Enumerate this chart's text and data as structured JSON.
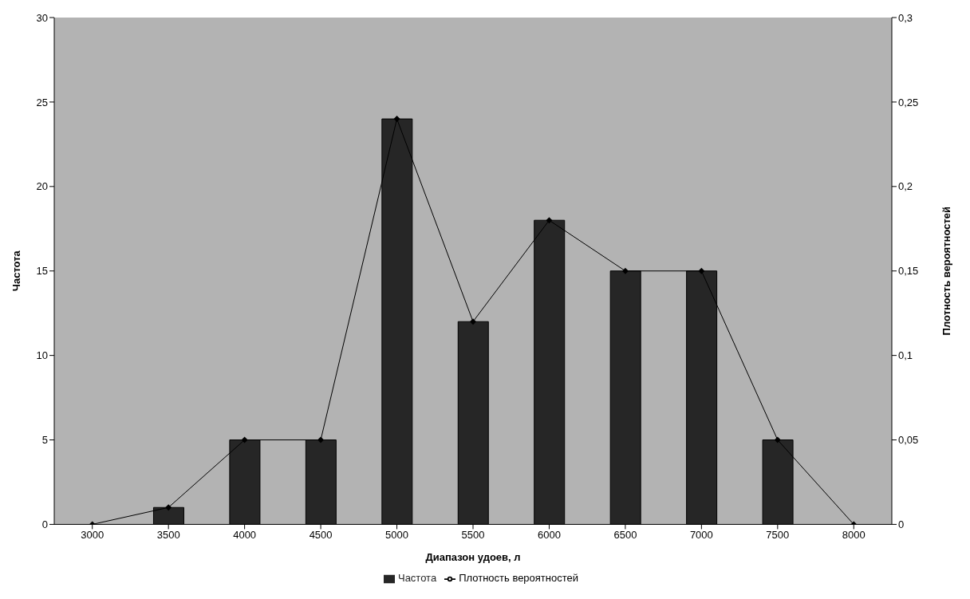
{
  "chart_data": {
    "type": "bar",
    "xlabel": "Диапазон удоев, л",
    "ylabel": "Частота",
    "y2label": "Плотность вероятностей",
    "categories": [
      "3000",
      "3500",
      "4000",
      "4500",
      "5000",
      "5500",
      "6000",
      "6500",
      "7000",
      "7500",
      "8000"
    ],
    "series": [
      {
        "name": "Частота",
        "color": "#262626",
        "values": [
          0,
          1,
          5,
          5,
          24,
          12,
          18,
          15,
          15,
          5,
          0
        ]
      },
      {
        "name": "Плотность вероятностей",
        "type": "line",
        "axis": "y2",
        "color": "#000000",
        "marker": "diamond",
        "values": [
          0,
          0.01,
          0.05,
          0.05,
          0.24,
          0.12,
          0.18,
          0.15,
          0.15,
          0.05,
          0
        ]
      }
    ],
    "ylim": [
      0,
      30
    ],
    "yticks": [
      0,
      5,
      10,
      15,
      20,
      25,
      30
    ],
    "y2lim": [
      0,
      0.3
    ],
    "y2ticks": [
      0,
      {
        "value": 0.05,
        "label": "0,05"
      },
      {
        "value": 0.1,
        "label": "0,1"
      },
      {
        "value": 0.15,
        "label": "0,15"
      },
      {
        "value": 0.2,
        "label": "0,2"
      },
      {
        "value": 0.25,
        "label": "0,25"
      },
      {
        "value": 0.3,
        "label": "0,3"
      }
    ],
    "grid": false,
    "legend": "bottom"
  }
}
